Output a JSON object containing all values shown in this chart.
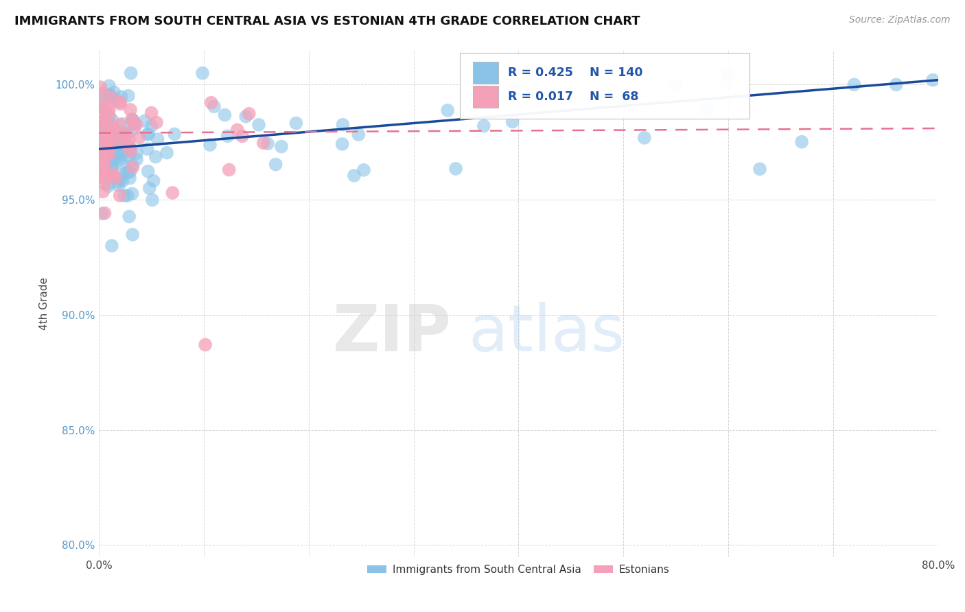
{
  "title": "IMMIGRANTS FROM SOUTH CENTRAL ASIA VS ESTONIAN 4TH GRADE CORRELATION CHART",
  "source": "Source: ZipAtlas.com",
  "ylabel": "4th Grade",
  "xlim": [
    0.0,
    0.8
  ],
  "ylim": [
    0.795,
    1.015
  ],
  "xticks": [
    0.0,
    0.1,
    0.2,
    0.3,
    0.4,
    0.5,
    0.6,
    0.7,
    0.8
  ],
  "xticklabels": [
    "0.0%",
    "",
    "",
    "",
    "",
    "",
    "",
    "",
    "80.0%"
  ],
  "yticks": [
    0.8,
    0.85,
    0.9,
    0.95,
    1.0
  ],
  "yticklabels": [
    "80.0%",
    "85.0%",
    "90.0%",
    "95.0%",
    "100.0%"
  ],
  "blue_color": "#89C4E8",
  "pink_color": "#F4A0B8",
  "blue_line_color": "#1A4A9A",
  "pink_line_color": "#E87090",
  "R_blue": 0.425,
  "N_blue": 140,
  "R_pink": 0.017,
  "N_pink": 68,
  "watermark_zip": "ZIP",
  "watermark_atlas": "atlas",
  "legend_label_blue": "Immigrants from South Central Asia",
  "legend_label_pink": "Estonians",
  "blue_line_x0": 0.0,
  "blue_line_y0": 0.972,
  "blue_line_x1": 0.8,
  "blue_line_y1": 1.002,
  "pink_line_x0": 0.0,
  "pink_line_y0": 0.979,
  "pink_line_x1": 0.8,
  "pink_line_y1": 0.981
}
